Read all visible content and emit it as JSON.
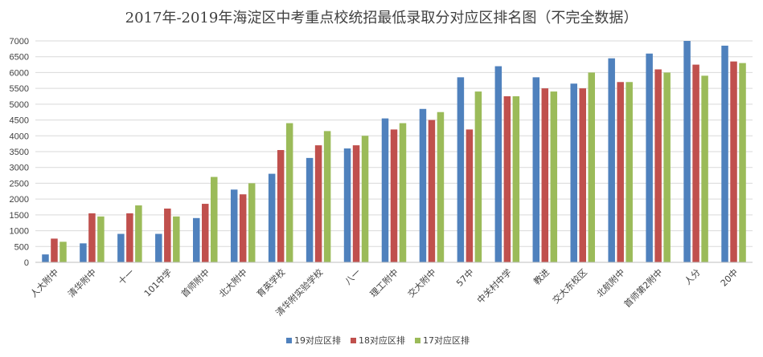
{
  "chart_data": {
    "type": "bar",
    "title": "2017年-2019年海淀区中考重点校统招最低录取分对应区排名图（不完全数据）",
    "xlabel": "",
    "ylabel": "",
    "ylim": [
      0,
      7000
    ],
    "ytick_step": 500,
    "grid": true,
    "legend_position": "bottom",
    "categories": [
      "人大附中",
      "清华附中",
      "十一",
      "101中学",
      "首师附中",
      "北大附中",
      "育英学校",
      "清华附实验学校",
      "八一",
      "理工附中",
      "交大附中",
      "57中",
      "中关村中学",
      "教进",
      "交大东校区",
      "北航附中",
      "首师第2附中",
      "人分",
      "20中"
    ],
    "series": [
      {
        "name": "19对应区排",
        "color": "#4F81BD",
        "values": [
          250,
          600,
          900,
          900,
          1400,
          2300,
          2800,
          3300,
          3600,
          4550,
          4850,
          5850,
          6200,
          5850,
          5650,
          6450,
          6600,
          7000,
          6850
        ]
      },
      {
        "name": "18对应区排",
        "color": "#C0504D",
        "values": [
          750,
          1550,
          1550,
          1700,
          1850,
          2150,
          3550,
          3700,
          3700,
          4200,
          4500,
          4200,
          5250,
          5500,
          5500,
          5700,
          6100,
          6250,
          6350
        ]
      },
      {
        "name": "17对应区排",
        "color": "#9BBB59",
        "values": [
          650,
          1450,
          1800,
          1450,
          2700,
          2500,
          4400,
          4150,
          4000,
          4400,
          4750,
          5400,
          5250,
          5400,
          6000,
          5700,
          6000,
          5900,
          6300
        ]
      }
    ]
  }
}
